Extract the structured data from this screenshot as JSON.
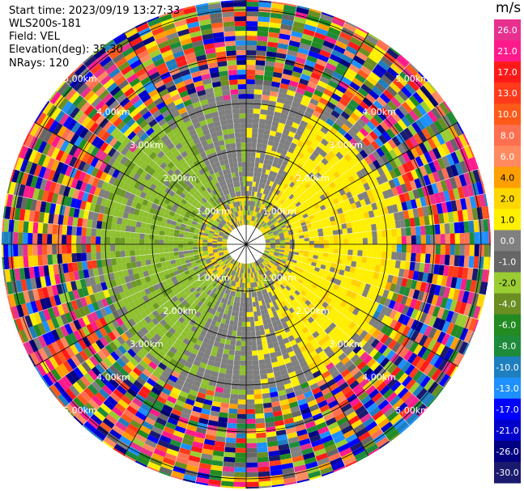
{
  "header": {
    "start_time": "Start time: 2023/09/19 13:27:33",
    "instrument": "WLS200s-181",
    "field": "Field: VEL",
    "elevation": "Elevation(deg): 35.30",
    "nrays": "NRays: 120"
  },
  "colorbar": {
    "unit": "m/s",
    "ticks": [
      "26.0",
      "21.0",
      "17.0",
      "13.0",
      "10.0",
      "8.0",
      "6.0",
      "4.0",
      "2.0",
      "1.0",
      "0.0",
      "-1.0",
      "-2.0",
      "-4.0",
      "-6.0",
      "-8.0",
      "-10.0",
      "-13.0",
      "-17.0",
      "-21.0",
      "-26.0",
      "-30.0"
    ],
    "colors": [
      "#e8308f",
      "#ff1a8c",
      "#ff1a1a",
      "#ff3a1a",
      "#ff5a1a",
      "#ff7050",
      "#ff8a60",
      "#ffa000",
      "#ffd700",
      "#fff000",
      "#808080",
      "#666666",
      "#9acd32",
      "#6b8e23",
      "#228b22",
      "#1e8b3a",
      "#1e7fbf",
      "#1e90ff",
      "#0000ff",
      "#0000cd",
      "#000080",
      "#1a1a6e"
    ]
  },
  "chart_data": {
    "type": "ppi",
    "field": "VEL",
    "units": "m/s",
    "nrays": 120,
    "range_ring_labels": [
      "1.00km",
      "2.00km",
      "3.00km",
      "4.00km",
      "5.00km"
    ],
    "color_range": [
      -30.0,
      26.0
    ],
    "description_of_field": [
      {
        "range_km": [
          0,
          1.0
        ],
        "dominant": "mixed yellow/green near-zero velocities"
      },
      {
        "range_km": [
          1.0,
          3.0
        ],
        "east_side_mps": 2.0,
        "west_side_mps": -2.0,
        "north_south_mps": 0.0
      },
      {
        "range_km": [
          3.0,
          6.0
        ],
        "dominant": "noise, full color spectrum"
      }
    ]
  }
}
